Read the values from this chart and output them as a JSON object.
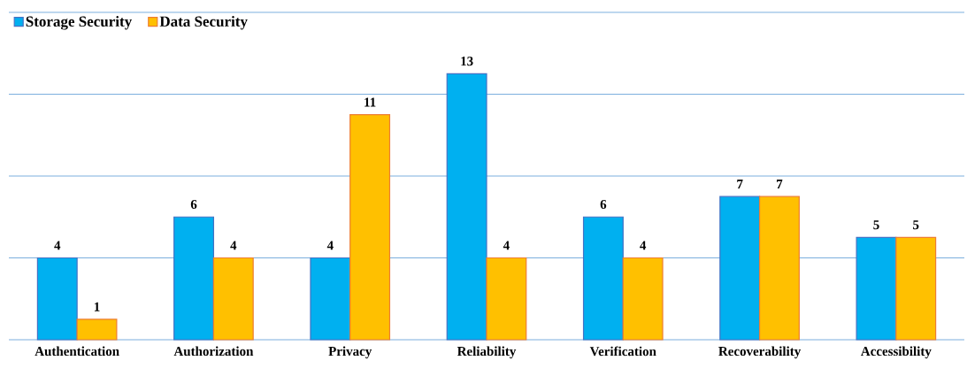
{
  "chart_data": {
    "type": "bar",
    "categories": [
      "Authentication",
      "Authorization",
      "Privacy",
      "Reliability",
      "Verification",
      "Recoverability",
      "Accessibility"
    ],
    "series": [
      {
        "name": "Storage Security",
        "color": "#00b0f0",
        "values": [
          4,
          6,
          4,
          13,
          6,
          7,
          5
        ]
      },
      {
        "name": "Data Security",
        "color": "#ffc000",
        "values": [
          1,
          4,
          11,
          4,
          4,
          7,
          5
        ]
      }
    ],
    "ylim": [
      0,
      16
    ],
    "yticks": [
      {
        "value": 0,
        "label": null
      },
      {
        "value": 4,
        "label": null
      },
      {
        "value": 8,
        "label": null
      },
      {
        "value": 12,
        "label": null
      },
      {
        "value": 16,
        "label": null
      }
    ],
    "tick_labels": "x",
    "grid": "y",
    "legend": "top left",
    "data_labels": true
  }
}
